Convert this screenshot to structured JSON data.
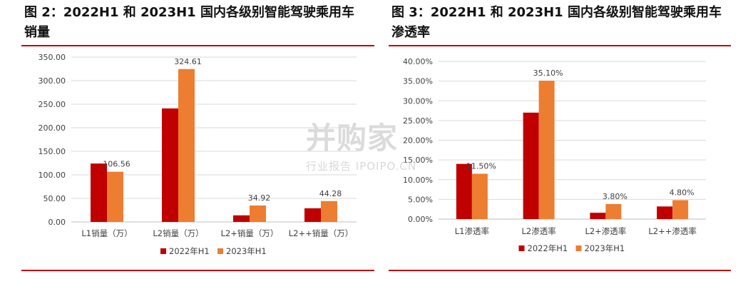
{
  "figures": [
    {
      "title": "图 2：2022H1 和 2023H1 国内各级别智能驾驶乘用车销量"
    },
    {
      "title": "图 3：2022H1 和 2023H1 国内各级别智能驾驶乘用车渗透率"
    }
  ],
  "watermark": {
    "main": "并购家",
    "sub": "行业报告 IPOIPO.CN"
  },
  "chart_data": [
    {
      "type": "bar",
      "title": "",
      "categories": [
        "L1销量（万）",
        "L2销量（万）",
        "L2+销量（万）",
        "L2++销量（万）"
      ],
      "series": [
        {
          "name": "2022年H1",
          "values": [
            124,
            241,
            14,
            29
          ],
          "color": "#c00000",
          "labels": [
            "",
            "",
            "",
            ""
          ]
        },
        {
          "name": "2023年H1",
          "values": [
            106.56,
            324.61,
            34.92,
            44.28
          ],
          "color": "#ed7d31",
          "labels": [
            "106.56",
            "324.61",
            "34.92",
            "44.28"
          ]
        }
      ],
      "yticks": [
        "0.00",
        "50.00",
        "100.00",
        "150.00",
        "200.00",
        "250.00",
        "300.00",
        "350.00"
      ],
      "ylim": [
        0,
        350
      ],
      "grid": true,
      "legend": "bottom",
      "xlabel": "",
      "ylabel": ""
    },
    {
      "type": "bar",
      "title": "",
      "categories": [
        "L1渗透率",
        "L2渗透率",
        "L2+渗透率",
        "L2++渗透率"
      ],
      "series": [
        {
          "name": "2022年H1",
          "values": [
            14.0,
            27.0,
            1.6,
            3.2
          ],
          "color": "#c00000",
          "labels": [
            "",
            "",
            "",
            ""
          ]
        },
        {
          "name": "2023年H1",
          "values": [
            11.5,
            35.1,
            3.8,
            4.8
          ],
          "color": "#ed7d31",
          "labels": [
            "11.50%",
            "35.10%",
            "3.80%",
            "4.80%"
          ]
        }
      ],
      "yticks": [
        "0.00%",
        "5.00%",
        "10.00%",
        "15.00%",
        "20.00%",
        "25.00%",
        "30.00%",
        "35.00%",
        "40.00%"
      ],
      "ylim": [
        0,
        40
      ],
      "grid": true,
      "legend": "bottom",
      "xlabel": "",
      "ylabel": ""
    }
  ]
}
